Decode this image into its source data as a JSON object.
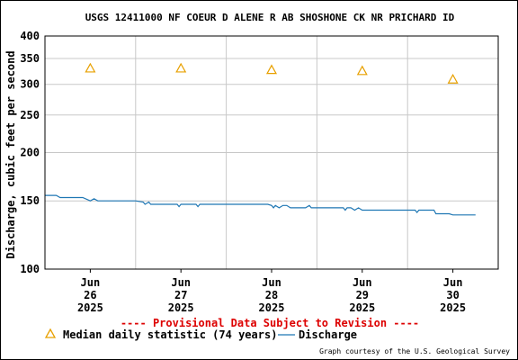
{
  "chart_data": {
    "type": "line",
    "title": "USGS 12411000 NF COEUR D ALENE R AB SHOSHONE CK NR PRICHARD ID",
    "ylabel": "Discharge, cubic feet per second",
    "xlabel": "",
    "yscale": "log",
    "ylim": [
      100,
      400
    ],
    "yticks": [
      100,
      150,
      200,
      250,
      300,
      350,
      400
    ],
    "xlim": [
      "2025-06-25T12:00",
      "2025-06-30T12:00"
    ],
    "xticks": [
      {
        "line1": "Jun",
        "line2": "26",
        "line3": "2025",
        "x": "2025-06-26T00:00"
      },
      {
        "line1": "Jun",
        "line2": "27",
        "line3": "2025",
        "x": "2025-06-27T00:00"
      },
      {
        "line1": "Jun",
        "line2": "28",
        "line3": "2025",
        "x": "2025-06-28T00:00"
      },
      {
        "line1": "Jun",
        "line2": "29",
        "line3": "2025",
        "x": "2025-06-29T00:00"
      },
      {
        "line1": "Jun",
        "line2": "30",
        "line3": "2025",
        "x": "2025-06-30T00:00"
      }
    ],
    "grid": true,
    "series": [
      {
        "name": "Median daily statistic (74 years)",
        "kind": "markers",
        "color": "#e8a000",
        "points": [
          {
            "x": "2025-06-26T00:00",
            "y": 330
          },
          {
            "x": "2025-06-27T00:00",
            "y": 330
          },
          {
            "x": "2025-06-28T00:00",
            "y": 327
          },
          {
            "x": "2025-06-29T00:00",
            "y": 325
          },
          {
            "x": "2025-06-30T00:00",
            "y": 309
          }
        ]
      },
      {
        "name": "Discharge",
        "kind": "line",
        "color": "#1f77b4",
        "points": [
          {
            "x": "2025-06-25T12:00",
            "y": 155
          },
          {
            "x": "2025-06-25T15:00",
            "y": 155
          },
          {
            "x": "2025-06-25T16:00",
            "y": 153
          },
          {
            "x": "2025-06-25T22:00",
            "y": 153
          },
          {
            "x": "2025-06-26T00:00",
            "y": 150
          },
          {
            "x": "2025-06-26T01:00",
            "y": 152
          },
          {
            "x": "2025-06-26T02:00",
            "y": 150
          },
          {
            "x": "2025-06-26T12:00",
            "y": 150
          },
          {
            "x": "2025-06-26T14:00",
            "y": 149
          },
          {
            "x": "2025-06-26T14:30",
            "y": 147
          },
          {
            "x": "2025-06-26T15:30",
            "y": 149
          },
          {
            "x": "2025-06-26T16:00",
            "y": 147
          },
          {
            "x": "2025-06-26T23:00",
            "y": 147
          },
          {
            "x": "2025-06-26T23:30",
            "y": 145
          },
          {
            "x": "2025-06-27T00:00",
            "y": 147
          },
          {
            "x": "2025-06-27T04:00",
            "y": 147
          },
          {
            "x": "2025-06-27T04:30",
            "y": 145
          },
          {
            "x": "2025-06-27T05:00",
            "y": 147
          },
          {
            "x": "2025-06-27T23:00",
            "y": 147
          },
          {
            "x": "2025-06-28T00:00",
            "y": 146
          },
          {
            "x": "2025-06-28T00:30",
            "y": 144
          },
          {
            "x": "2025-06-28T01:00",
            "y": 146
          },
          {
            "x": "2025-06-28T02:00",
            "y": 144
          },
          {
            "x": "2025-06-28T03:00",
            "y": 146
          },
          {
            "x": "2025-06-28T04:00",
            "y": 146
          },
          {
            "x": "2025-06-28T05:00",
            "y": 144
          },
          {
            "x": "2025-06-28T09:00",
            "y": 144
          },
          {
            "x": "2025-06-28T10:00",
            "y": 146
          },
          {
            "x": "2025-06-28T10:30",
            "y": 144
          },
          {
            "x": "2025-06-28T18:00",
            "y": 144
          },
          {
            "x": "2025-06-28T19:00",
            "y": 144
          },
          {
            "x": "2025-06-28T19:30",
            "y": 142
          },
          {
            "x": "2025-06-28T20:00",
            "y": 144
          },
          {
            "x": "2025-06-28T21:00",
            "y": 144
          },
          {
            "x": "2025-06-28T22:00",
            "y": 142
          },
          {
            "x": "2025-06-28T23:00",
            "y": 144
          },
          {
            "x": "2025-06-29T00:00",
            "y": 142
          },
          {
            "x": "2025-06-29T04:00",
            "y": 142
          },
          {
            "x": "2025-06-29T06:00",
            "y": 142
          },
          {
            "x": "2025-06-29T14:00",
            "y": 142
          },
          {
            "x": "2025-06-29T14:30",
            "y": 140
          },
          {
            "x": "2025-06-29T15:00",
            "y": 142
          },
          {
            "x": "2025-06-29T19:00",
            "y": 142
          },
          {
            "x": "2025-06-29T19:30",
            "y": 139
          },
          {
            "x": "2025-06-29T21:00",
            "y": 139
          },
          {
            "x": "2025-06-29T23:00",
            "y": 139
          },
          {
            "x": "2025-06-30T00:00",
            "y": 138
          },
          {
            "x": "2025-06-30T06:00",
            "y": 138
          }
        ]
      }
    ]
  },
  "footer": {
    "provisional_notice": "---- Provisional Data Subject to Revision ----",
    "credit": "Graph courtesy of the U.S. Geological Survey"
  },
  "legend": {
    "median_label": "Median daily statistic (74 years)",
    "discharge_label": "Discharge"
  },
  "colors": {
    "provisional_red": "#dd0000",
    "grid": "#c8c8c8"
  }
}
